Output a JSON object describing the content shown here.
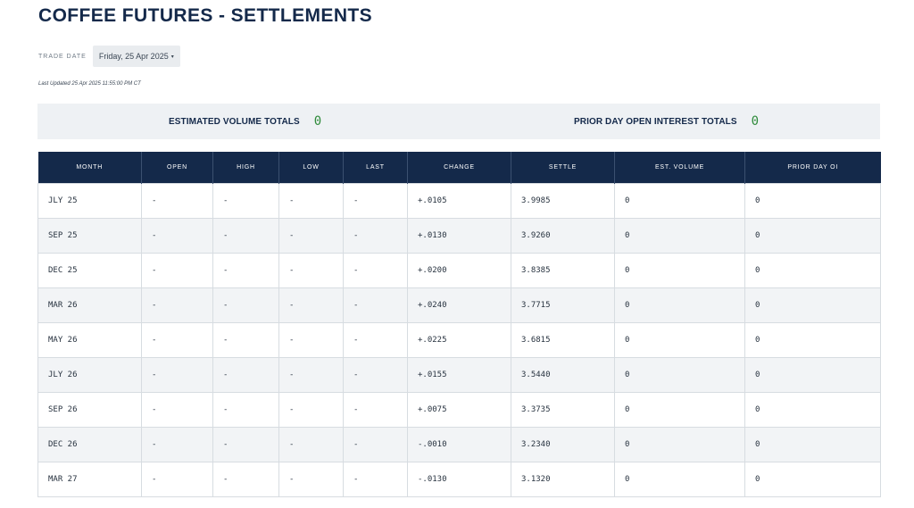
{
  "page": {
    "title": "COFFEE FUTURES - SETTLEMENTS"
  },
  "trade_date": {
    "label": "TRADE DATE",
    "value": "Friday, 25 Apr 2025",
    "caret": "▾"
  },
  "last_updated": "Last Updated 25 Apr 2025 11:55:00 PM CT",
  "totals": {
    "volume_label": "ESTIMATED VOLUME TOTALS",
    "volume_value": "0",
    "oi_label": "PRIOR DAY OPEN INTEREST TOTALS",
    "oi_value": "0",
    "value_color": "#2e8b3a"
  },
  "table": {
    "headers": [
      "MONTH",
      "OPEN",
      "HIGH",
      "LOW",
      "LAST",
      "CHANGE",
      "SETTLE",
      "EST. VOLUME",
      "PRIOR DAY OI"
    ],
    "rows": [
      [
        "JLY 25",
        "-",
        "-",
        "-",
        "-",
        "+.0105",
        "3.9985",
        "0",
        "0"
      ],
      [
        "SEP 25",
        "-",
        "-",
        "-",
        "-",
        "+.0130",
        "3.9260",
        "0",
        "0"
      ],
      [
        "DEC 25",
        "-",
        "-",
        "-",
        "-",
        "+.0200",
        "3.8385",
        "0",
        "0"
      ],
      [
        "MAR 26",
        "-",
        "-",
        "-",
        "-",
        "+.0240",
        "3.7715",
        "0",
        "0"
      ],
      [
        "MAY 26",
        "-",
        "-",
        "-",
        "-",
        "+.0225",
        "3.6815",
        "0",
        "0"
      ],
      [
        "JLY 26",
        "-",
        "-",
        "-",
        "-",
        "+.0155",
        "3.5440",
        "0",
        "0"
      ],
      [
        "SEP 26",
        "-",
        "-",
        "-",
        "-",
        "+.0075",
        "3.3735",
        "0",
        "0"
      ],
      [
        "DEC 26",
        "-",
        "-",
        "-",
        "-",
        "-.0010",
        "3.2340",
        "0",
        "0"
      ],
      [
        "MAR 27",
        "-",
        "-",
        "-",
        "-",
        "-.0130",
        "3.1320",
        "0",
        "0"
      ]
    ]
  },
  "colors": {
    "header_bg": "#14294a",
    "title": "#14294a",
    "totals_bg": "#eef1f4"
  }
}
